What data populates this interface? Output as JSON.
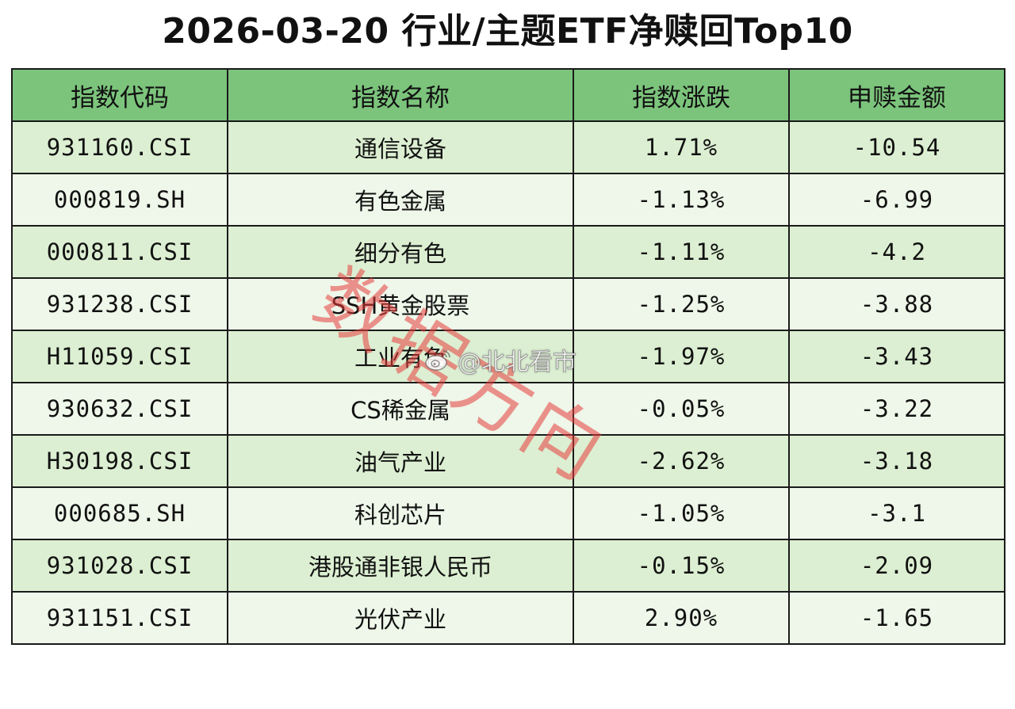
{
  "title": "2026-03-20 行业/主题ETF净赎回Top10",
  "table": {
    "headers": [
      "指数代码",
      "指数名称",
      "指数涨跌",
      "申赎金额"
    ],
    "rows": [
      {
        "code": "931160.CSI",
        "name": "通信设备",
        "change": "1.71%",
        "amount": "-10.54"
      },
      {
        "code": "000819.SH",
        "name": "有色金属",
        "change": "-1.13%",
        "amount": "-6.99"
      },
      {
        "code": "000811.CSI",
        "name": "细分有色",
        "change": "-1.11%",
        "amount": "-4.2"
      },
      {
        "code": "931238.CSI",
        "name": "SSH黄金股票",
        "change": "-1.25%",
        "amount": "-3.88"
      },
      {
        "code": "H11059.CSI",
        "name": "工业有色",
        "change": "-1.97%",
        "amount": "-3.43"
      },
      {
        "code": "930632.CSI",
        "name": "CS稀金属",
        "change": "-0.05%",
        "amount": "-3.22"
      },
      {
        "code": "H30198.CSI",
        "name": "油气产业",
        "change": "-2.62%",
        "amount": "-3.18"
      },
      {
        "code": "000685.SH",
        "name": "科创芯片",
        "change": "-1.05%",
        "amount": "-3.1"
      },
      {
        "code": "931028.CSI",
        "name": "港股通非银人民币",
        "change": "-0.15%",
        "amount": "-2.09"
      },
      {
        "code": "931151.CSI",
        "name": "光伏产业",
        "change": "2.90%",
        "amount": "-1.65"
      }
    ]
  },
  "watermark_red": "数据方向",
  "watermark_weibo": {
    "icon": "weibo-icon",
    "text": "@北北看市"
  },
  "colors": {
    "header_bg": "#7cc47c",
    "row_odd_bg": "#dcefd2",
    "row_even_bg": "#eef7e9",
    "watermark_red": "#e83c3c"
  }
}
